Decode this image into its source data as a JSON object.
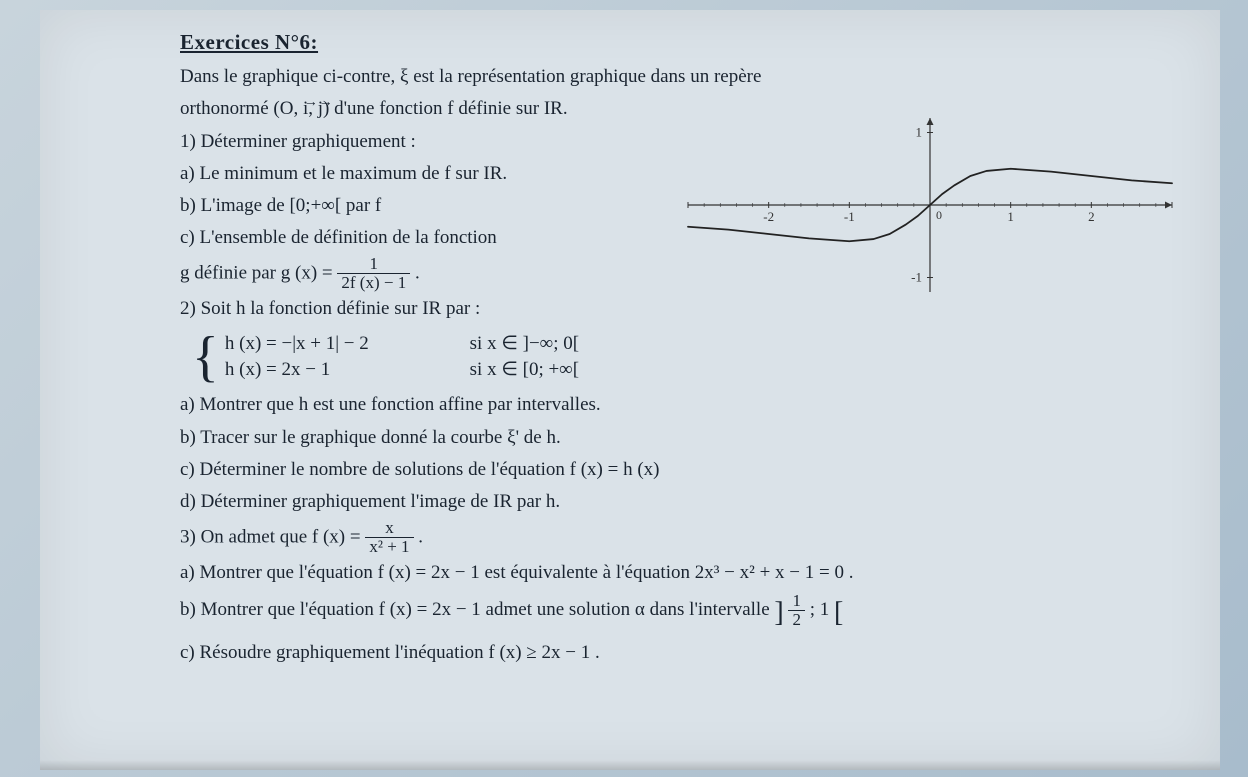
{
  "title": "Exercices N°6:",
  "intro1": "Dans le graphique ci-contre, ξ est la représentation graphique dans un repère",
  "intro2_prefix": "orthonormé (O, ",
  "intro2_i": "i",
  "intro2_sep": ", ",
  "intro2_j": "j",
  "intro2_suffix": ") d'une fonction f définie sur IR.",
  "q1": "1) Déterminer graphiquement :",
  "q1a": "a) Le minimum et le maximum de f sur IR.",
  "q1b": "b) L'image de [0;+∞[ par f",
  "q1c": "c) L'ensemble de définition de la fonction",
  "g_prefix": "g définie par g (x) = ",
  "g_num": "1",
  "g_den": "2f (x) − 1",
  "g_suffix": ".",
  "q2": "2) Soit h la fonction définie sur IR par :",
  "h1_lhs": "h (x) = −|x + 1| − 2",
  "h1_cond": "si  x ∈ ]−∞; 0[",
  "h2_lhs": "h (x) = 2x − 1",
  "h2_cond": "si  x ∈ [0; +∞[",
  "q2a": "a) Montrer que h est une fonction affine par intervalles.",
  "q2b": "b) Tracer sur le graphique donné la courbe ξ' de h.",
  "q2c": "c) Déterminer le nombre de solutions de l'équation f (x) = h (x)",
  "q2d": "d) Déterminer graphiquement l'image de IR par h.",
  "q3_prefix": "3) On admet que f (x) = ",
  "q3_num": "x",
  "q3_den": "x² + 1",
  "q3_suffix": ".",
  "q3a": "a) Montrer que l'équation f (x) = 2x − 1 est équivalente à l'équation 2x³ − x² + x − 1 = 0 .",
  "q3b_prefix": "b) Montrer que l'équation f (x) = 2x − 1 admet une solution α dans l'intervalle ",
  "q3b_interval_left": "]",
  "q3b_num": "1",
  "q3b_den": "2",
  "q3b_interval_mid": "; 1",
  "q3b_interval_right": "[",
  "q3c": "c) Résoudre graphiquement l'inéquation f (x) ≥ 2x − 1 .",
  "graph": {
    "type": "line",
    "xlim": [
      -3,
      3
    ],
    "ylim": [
      -1.2,
      1.2
    ],
    "xticks": [
      -3,
      -2,
      -1,
      0,
      1,
      2,
      3
    ],
    "yticks": [
      -1,
      1
    ],
    "xtick_labels": {
      "-2": "-2",
      "-1": "-1",
      "1": "1",
      "2": "2"
    },
    "ytick_labels": {
      "-1": "-1",
      "1": "1"
    },
    "axis_color": "#333333",
    "tick_color": "#333333",
    "curve_color": "#222222",
    "curve_width": 1.8,
    "background_color": "transparent",
    "points": [
      [
        -3.0,
        -0.3
      ],
      [
        -2.5,
        -0.34
      ],
      [
        -2.0,
        -0.4
      ],
      [
        -1.5,
        -0.46
      ],
      [
        -1.0,
        -0.5
      ],
      [
        -0.7,
        -0.47
      ],
      [
        -0.5,
        -0.4
      ],
      [
        -0.3,
        -0.27
      ],
      [
        -0.15,
        -0.15
      ],
      [
        0.0,
        0.0
      ],
      [
        0.15,
        0.15
      ],
      [
        0.3,
        0.27
      ],
      [
        0.5,
        0.4
      ],
      [
        0.7,
        0.47
      ],
      [
        1.0,
        0.5
      ],
      [
        1.5,
        0.46
      ],
      [
        2.0,
        0.4
      ],
      [
        2.5,
        0.34
      ],
      [
        3.0,
        0.3
      ]
    ],
    "arrow_size": 7
  },
  "colors": {
    "text": "#1a2430",
    "page_bg": "#dae2e8"
  }
}
